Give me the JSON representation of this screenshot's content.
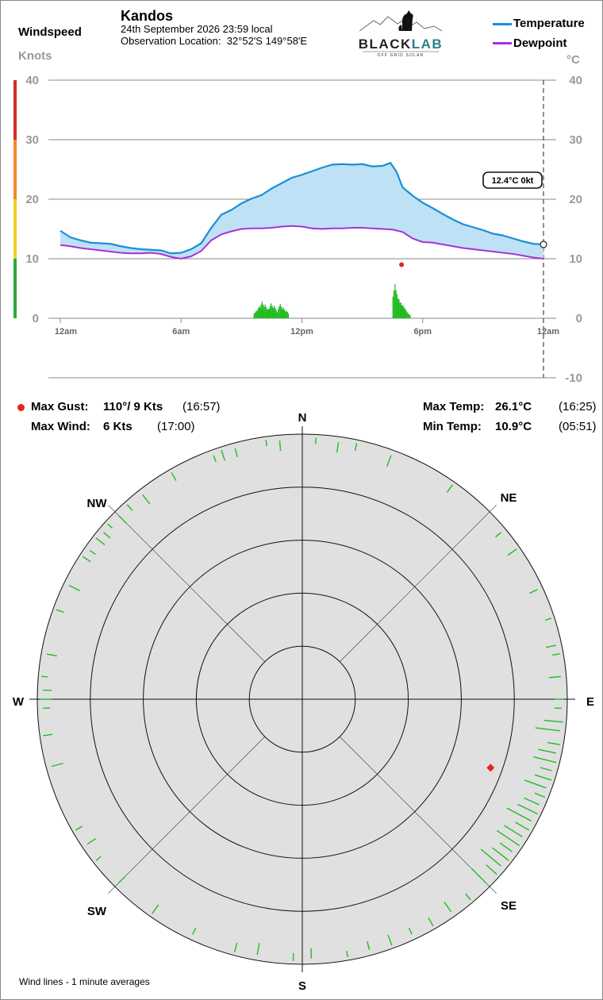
{
  "header": {
    "windspeed_label": "Windspeed",
    "location": "Kandos",
    "date_line": "24th September 2026  23:59 local",
    "obs_label": "Observation Location:",
    "obs_coords": "32°52'S 149°58'E",
    "logo": {
      "name": "BLACKLAB",
      "left_part": "BLACK",
      "right_part": "LAB",
      "tagline": "OFF GRID SOLAR"
    },
    "legend": [
      {
        "label": "Temperature",
        "color": "#1a8fd8"
      },
      {
        "label": "Dewpoint",
        "color": "#a632d8"
      }
    ]
  },
  "chart_data": {
    "type": "line",
    "left_axis": {
      "unit": "Knots",
      "ticks": [
        "40",
        "30",
        "20",
        "10",
        "0"
      ],
      "range": [
        0,
        40
      ]
    },
    "right_axis": {
      "unit": "°C",
      "ticks": [
        "40",
        "30",
        "20",
        "10",
        "0",
        "-10"
      ],
      "range": [
        -10,
        40
      ]
    },
    "x_ticks": [
      {
        "label": "12am",
        "hour": 0
      },
      {
        "label": "6am",
        "hour": 6
      },
      {
        "label": "12pm",
        "hour": 12
      },
      {
        "label": "6pm",
        "hour": 18
      },
      {
        "label": "12am",
        "hour": 24
      }
    ],
    "series": [
      {
        "name": "Temperature",
        "color": "#1a8fd8",
        "points": [
          [
            0,
            14.7
          ],
          [
            0.5,
            13.6
          ],
          [
            1,
            13.1
          ],
          [
            1.5,
            12.7
          ],
          [
            2,
            12.6
          ],
          [
            2.5,
            12.5
          ],
          [
            3,
            12.1
          ],
          [
            3.5,
            11.8
          ],
          [
            4,
            11.6
          ],
          [
            4.5,
            11.5
          ],
          [
            5,
            11.4
          ],
          [
            5.5,
            10.9
          ],
          [
            6,
            11.0
          ],
          [
            6.5,
            11.6
          ],
          [
            7,
            12.6
          ],
          [
            7.5,
            15.2
          ],
          [
            8,
            17.4
          ],
          [
            8.5,
            18.2
          ],
          [
            9,
            19.3
          ],
          [
            9.5,
            20.1
          ],
          [
            10,
            20.7
          ],
          [
            10.5,
            21.8
          ],
          [
            11,
            22.7
          ],
          [
            11.5,
            23.6
          ],
          [
            12,
            24.1
          ],
          [
            12.5,
            24.7
          ],
          [
            13,
            25.3
          ],
          [
            13.5,
            25.8
          ],
          [
            14,
            25.9
          ],
          [
            14.5,
            25.8
          ],
          [
            15,
            25.9
          ],
          [
            15.5,
            25.5
          ],
          [
            16,
            25.6
          ],
          [
            16.4,
            26.1
          ],
          [
            16.7,
            24.6
          ],
          [
            17,
            22.0
          ],
          [
            17.5,
            20.6
          ],
          [
            18,
            19.4
          ],
          [
            18.5,
            18.5
          ],
          [
            19,
            17.5
          ],
          [
            19.5,
            16.6
          ],
          [
            20,
            15.8
          ],
          [
            20.5,
            15.3
          ],
          [
            21,
            14.8
          ],
          [
            21.5,
            14.2
          ],
          [
            22,
            13.9
          ],
          [
            22.5,
            13.4
          ],
          [
            23,
            12.9
          ],
          [
            23.5,
            12.5
          ],
          [
            24,
            12.4
          ]
        ]
      },
      {
        "name": "Dewpoint",
        "color": "#a632d8",
        "points": [
          [
            0,
            12.3
          ],
          [
            0.5,
            12.1
          ],
          [
            1,
            11.8
          ],
          [
            1.5,
            11.6
          ],
          [
            2,
            11.4
          ],
          [
            2.5,
            11.2
          ],
          [
            3,
            11.0
          ],
          [
            3.5,
            10.9
          ],
          [
            4,
            10.9
          ],
          [
            4.5,
            11.0
          ],
          [
            5,
            10.8
          ],
          [
            5.5,
            10.3
          ],
          [
            6,
            10.0
          ],
          [
            6.5,
            10.4
          ],
          [
            7,
            11.3
          ],
          [
            7.5,
            13.1
          ],
          [
            8,
            14.1
          ],
          [
            8.5,
            14.6
          ],
          [
            9,
            15.0
          ],
          [
            9.5,
            15.1
          ],
          [
            10,
            15.1
          ],
          [
            10.5,
            15.2
          ],
          [
            11,
            15.4
          ],
          [
            11.5,
            15.5
          ],
          [
            12,
            15.4
          ],
          [
            12.5,
            15.1
          ],
          [
            13,
            15.0
          ],
          [
            13.5,
            15.1
          ],
          [
            14,
            15.1
          ],
          [
            14.5,
            15.2
          ],
          [
            15,
            15.2
          ],
          [
            15.5,
            15.1
          ],
          [
            16,
            15.0
          ],
          [
            16.5,
            14.9
          ],
          [
            17,
            14.5
          ],
          [
            17.5,
            13.4
          ],
          [
            18,
            12.8
          ],
          [
            18.5,
            12.7
          ],
          [
            19,
            12.4
          ],
          [
            19.5,
            12.1
          ],
          [
            20,
            11.8
          ],
          [
            20.5,
            11.6
          ],
          [
            21,
            11.4
          ],
          [
            21.5,
            11.2
          ],
          [
            22,
            11.0
          ],
          [
            22.5,
            10.8
          ],
          [
            23,
            10.5
          ],
          [
            23.5,
            10.2
          ],
          [
            24,
            10.0
          ]
        ]
      },
      {
        "name": "Windspeed",
        "color": "#22bb22",
        "points": [
          [
            9.7,
            1.2
          ],
          [
            9.85,
            2.0
          ],
          [
            10.0,
            2.8
          ],
          [
            10.15,
            2.3
          ],
          [
            10.3,
            1.6
          ],
          [
            10.45,
            2.5
          ],
          [
            10.6,
            2.1
          ],
          [
            10.75,
            1.0
          ],
          [
            10.9,
            2.4
          ],
          [
            11.05,
            1.8
          ],
          [
            11.2,
            1.3
          ],
          [
            16.6,
            5.7
          ],
          [
            16.7,
            4.0
          ],
          [
            16.8,
            3.2
          ],
          [
            16.9,
            2.6
          ],
          [
            17.0,
            2.2
          ],
          [
            17.1,
            1.6
          ],
          [
            17.25,
            0.8
          ]
        ]
      }
    ],
    "max_gust_marker": {
      "hour": 16.95,
      "knots": 9
    },
    "current": {
      "label": "12.4°C  0kt",
      "hour": 24,
      "temp": 12.4
    },
    "stats": {
      "max_gust": {
        "label": "Max Gust:",
        "value": "110°/  9 Kts",
        "time": "(16:57)",
        "direction": 110,
        "knots": 9
      },
      "max_wind": {
        "label": "Max Wind:",
        "value": "6 Kts",
        "time": "(17:00)"
      },
      "max_temp": {
        "label": "Max Temp:",
        "value": "26.1°C",
        "time": "(16:25)"
      },
      "min_temp": {
        "label": "Min Temp:",
        "value": "10.9°C",
        "time": "(05:51)"
      }
    },
    "compass": {
      "labels": [
        "N",
        "NE",
        "E",
        "SE",
        "S",
        "SW",
        "W",
        "NW"
      ],
      "rings": 5,
      "max_knots": 10,
      "wind_directions_deg": [
        3,
        8,
        12,
        20,
        35,
        50,
        55,
        65,
        72,
        78,
        80,
        85,
        90,
        92,
        95,
        97,
        100,
        102,
        104,
        106,
        108,
        110,
        112,
        114,
        116,
        118,
        120,
        122,
        124,
        126,
        128,
        130,
        132,
        135,
        140,
        145,
        150,
        155,
        160,
        165,
        170,
        178,
        182,
        190,
        195,
        205,
        215,
        225,
        232,
        236,
        240,
        255,
        262,
        268,
        270,
        272,
        275,
        280,
        290,
        296,
        303,
        305,
        308,
        310,
        312,
        315,
        318,
        322,
        330,
        340,
        342,
        345,
        352,
        355
      ]
    },
    "footnote": "Wind lines - 1 minute averages"
  }
}
